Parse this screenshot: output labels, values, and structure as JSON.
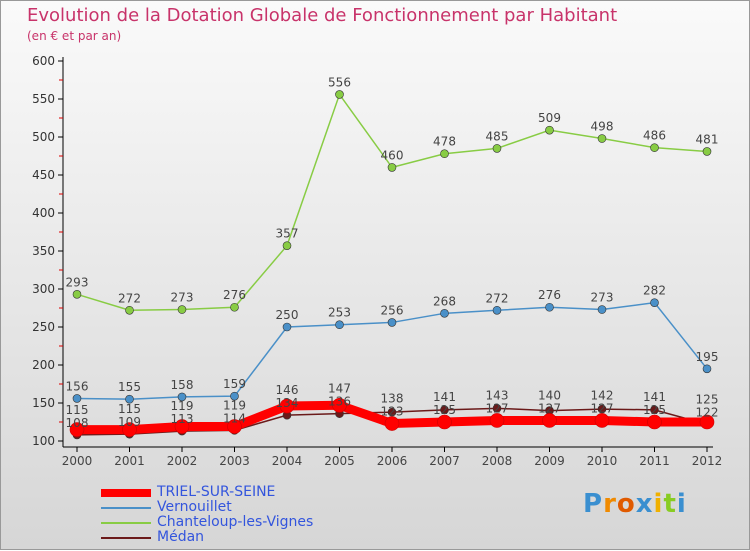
{
  "title": "Evolution de la Dotation Globale de Fonctionnement par Habitant",
  "subtitle": "(en € et par an)",
  "logo": "Proxiti",
  "chart_data": {
    "type": "line",
    "title": "Evolution de la Dotation Globale de Fonctionnement par Habitant",
    "ylabel": "(en € et par an)",
    "x": [
      2000,
      2001,
      2002,
      2003,
      2004,
      2005,
      2006,
      2007,
      2008,
      2009,
      2010,
      2011,
      2012
    ],
    "ylim": [
      100,
      600
    ],
    "yticks": [
      100,
      150,
      200,
      250,
      300,
      350,
      400,
      450,
      500,
      550,
      600
    ],
    "legend": "bottom-left",
    "series": [
      {
        "name": "TRIEL-SUR-SEINE",
        "color": "#ff0000",
        "values": [
          115,
          115,
          119,
          119,
          146,
          147,
          123,
          125,
          127,
          127,
          127,
          125,
          125
        ]
      },
      {
        "name": "Vernouillet",
        "color": "#4a90c8",
        "values": [
          156,
          155,
          158,
          159,
          250,
          253,
          256,
          268,
          272,
          276,
          273,
          282,
          195
        ]
      },
      {
        "name": "Chanteloup-les-Vignes",
        "color": "#88cc44",
        "values": [
          293,
          272,
          273,
          276,
          357,
          556,
          460,
          478,
          485,
          509,
          498,
          486,
          481
        ]
      },
      {
        "name": "Médan",
        "color": "#6b1a1a",
        "values": [
          108,
          109,
          113,
          114,
          134,
          136,
          138,
          141,
          143,
          140,
          142,
          141,
          122
        ]
      }
    ]
  }
}
